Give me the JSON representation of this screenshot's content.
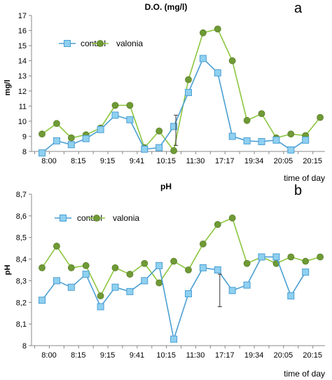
{
  "chart_data": [
    {
      "type": "line",
      "panel_label": "a",
      "title": "D.O. (mg/l)",
      "xlabel": "time of day",
      "ylabel": "mg/l",
      "ylim": [
        8,
        17
      ],
      "yticks": [
        "8",
        "9",
        "10",
        "11",
        "12",
        "13",
        "14",
        "15",
        "16",
        "17"
      ],
      "xtick_labels": [
        "8:00",
        "8:15",
        "9:15",
        "9:41",
        "10:15",
        "11:30",
        "17:17",
        "19:34",
        "20:05",
        "20:15"
      ],
      "grid": false,
      "legend": "top-left",
      "error_bar": {
        "x_index": 9,
        "low": 8.4,
        "high": 10.4
      },
      "series": [
        {
          "name": "control",
          "marker": "square",
          "color": "#4a9fd4",
          "marker_fill": "#8fd0f0",
          "values": [
            7.9,
            8.7,
            8.45,
            8.85,
            9.45,
            10.4,
            10.1,
            8.15,
            8.25,
            9.65,
            11.9,
            14.15,
            13.2,
            9.0,
            8.7,
            8.65,
            8.75,
            8.1,
            8.75
          ]
        },
        {
          "name": "valonia",
          "marker": "circle",
          "color": "#8cc63f",
          "marker_fill": "#6f9a35",
          "values": [
            9.15,
            9.85,
            8.9,
            9.1,
            9.55,
            11.05,
            11.05,
            8.25,
            9.35,
            8.05,
            12.75,
            15.85,
            16.1,
            14.0,
            10.05,
            10.5,
            8.9,
            9.15,
            9.05,
            10.25
          ]
        }
      ]
    },
    {
      "type": "line",
      "panel_label": "b",
      "title": "pH",
      "xlabel": "time of day",
      "ylabel": "pH",
      "ylim": [
        8,
        8.7
      ],
      "yticks": [
        "8",
        "8,1",
        "8,2",
        "8,3",
        "8,4",
        "8,5",
        "8,6",
        "8,7"
      ],
      "xtick_labels": [
        "8:00",
        "8:15",
        "9:15",
        "9:41",
        "10:15",
        "11:30",
        "17:17",
        "19:34",
        "20:05",
        "20:15"
      ],
      "grid": false,
      "legend": "top-left",
      "error_bar": {
        "x_index": 12,
        "low": 8.18,
        "high": 8.33
      },
      "series": [
        {
          "name": "control",
          "marker": "square",
          "color": "#4a9fd4",
          "marker_fill": "#8fd0f0",
          "values": [
            8.21,
            8.3,
            8.27,
            8.33,
            8.18,
            8.27,
            8.25,
            8.3,
            8.37,
            8.03,
            8.24,
            8.36,
            8.35,
            8.255,
            8.28,
            8.41,
            8.41,
            8.23,
            8.34
          ]
        },
        {
          "name": "valonia",
          "marker": "circle",
          "color": "#8cc63f",
          "marker_fill": "#6f9a35",
          "values": [
            8.36,
            8.46,
            8.36,
            8.37,
            8.23,
            8.36,
            8.33,
            8.38,
            8.29,
            8.39,
            8.35,
            8.47,
            8.56,
            8.59,
            8.38,
            8.41,
            8.38,
            8.41,
            8.39,
            8.41
          ]
        }
      ]
    }
  ]
}
